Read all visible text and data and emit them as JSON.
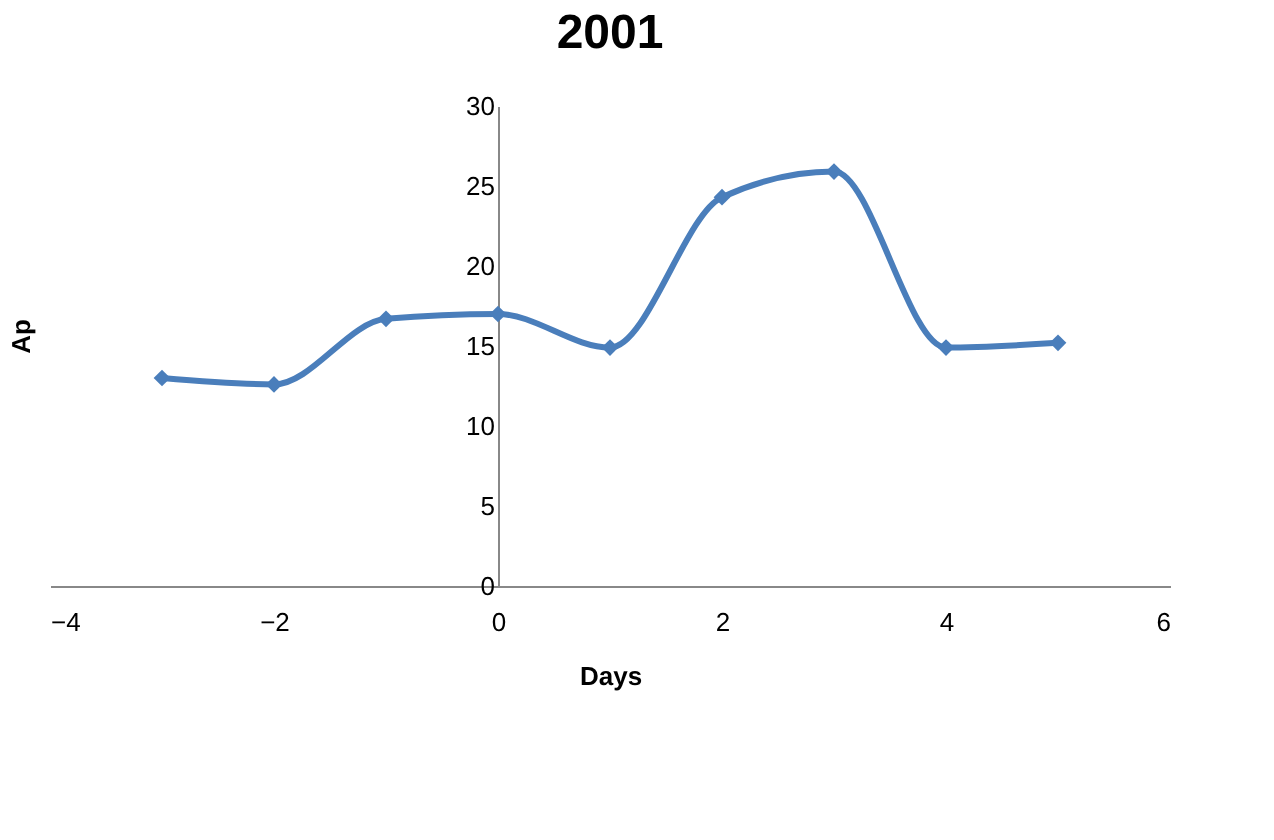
{
  "chart_data": {
    "type": "line",
    "title": "2001",
    "xlabel": "Days",
    "ylabel": "Ap",
    "x": [
      -3,
      -2,
      -1,
      0,
      1,
      2,
      3,
      4,
      5
    ],
    "series": [
      {
        "color": "#4a7ebb",
        "values": [
          13,
          12.6,
          16.7,
          17,
          14.9,
          24.3,
          25.9,
          14.9,
          15.2
        ]
      }
    ],
    "xlim": [
      -4,
      6
    ],
    "xticks": [
      -4,
      -2,
      0,
      2,
      4,
      6
    ],
    "ylim": [
      0,
      30
    ],
    "yticks": [
      0,
      5,
      10,
      15,
      20,
      25,
      30
    ],
    "grid": false,
    "marker": "diamond",
    "line_style": "solid"
  }
}
